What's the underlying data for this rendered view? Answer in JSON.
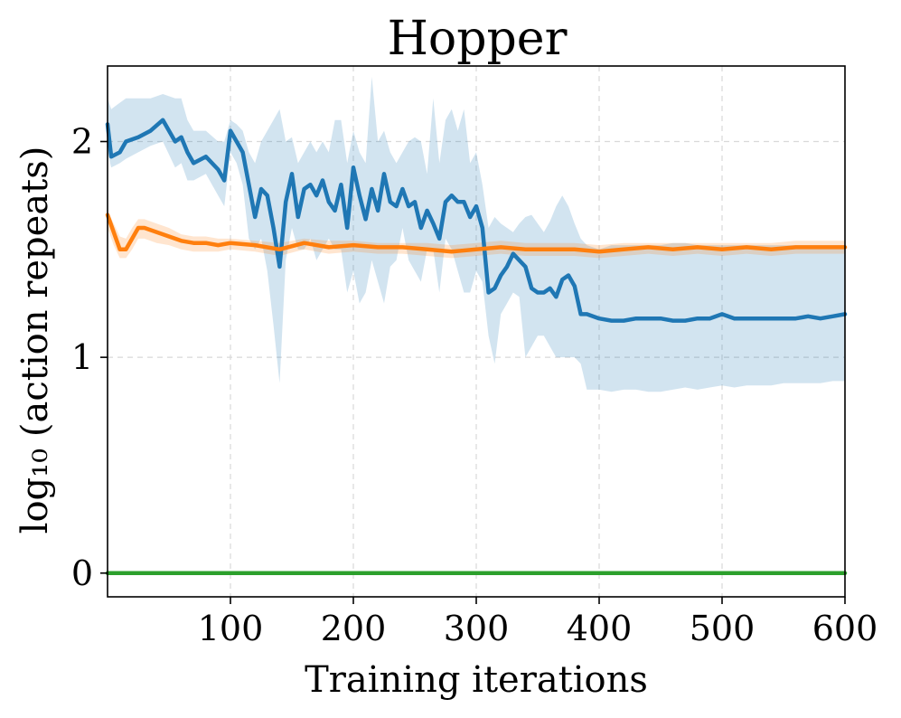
{
  "chart_data": {
    "type": "line",
    "title": "Hopper",
    "xlabel": "Training iterations",
    "ylabel": "log₁₀ (action repeats)",
    "xlim": [
      0,
      600
    ],
    "ylim": [
      -0.11,
      2.35
    ],
    "xticks": [
      100,
      200,
      300,
      400,
      500,
      600
    ],
    "xtick_labels": [
      "100",
      "200",
      "300",
      "400",
      "500",
      "600"
    ],
    "yticks": [
      0,
      1,
      2
    ],
    "ytick_labels": [
      "0",
      "1",
      "2"
    ],
    "grid": true,
    "colors": {
      "blue": "#1f77b4",
      "orange": "#ff7f0e",
      "green": "#2ca02c"
    },
    "series": [
      {
        "name": "series-blue",
        "color": "#1f77b4",
        "x": [
          0,
          3,
          10,
          15,
          25,
          35,
          45,
          55,
          60,
          65,
          70,
          80,
          90,
          95,
          100,
          105,
          110,
          115,
          120,
          125,
          130,
          135,
          140,
          145,
          150,
          155,
          160,
          165,
          170,
          175,
          180,
          185,
          190,
          195,
          200,
          205,
          210,
          215,
          220,
          225,
          230,
          235,
          240,
          245,
          250,
          255,
          260,
          265,
          270,
          275,
          280,
          285,
          290,
          295,
          300,
          305,
          310,
          315,
          320,
          325,
          330,
          335,
          340,
          345,
          350,
          355,
          360,
          365,
          370,
          375,
          380,
          385,
          390,
          400,
          410,
          420,
          430,
          440,
          450,
          460,
          470,
          480,
          490,
          500,
          510,
          520,
          530,
          540,
          550,
          560,
          570,
          580,
          590,
          600
        ],
        "values": [
          2.08,
          1.93,
          1.95,
          2.0,
          2.02,
          2.05,
          2.1,
          2.0,
          2.02,
          1.95,
          1.9,
          1.93,
          1.87,
          1.82,
          2.05,
          2.0,
          1.95,
          1.8,
          1.65,
          1.78,
          1.75,
          1.6,
          1.42,
          1.72,
          1.85,
          1.65,
          1.78,
          1.8,
          1.75,
          1.82,
          1.72,
          1.68,
          1.8,
          1.6,
          1.88,
          1.75,
          1.64,
          1.78,
          1.68,
          1.85,
          1.72,
          1.7,
          1.78,
          1.7,
          1.72,
          1.6,
          1.68,
          1.62,
          1.55,
          1.72,
          1.75,
          1.72,
          1.72,
          1.65,
          1.7,
          1.6,
          1.3,
          1.32,
          1.38,
          1.42,
          1.48,
          1.45,
          1.42,
          1.32,
          1.3,
          1.3,
          1.32,
          1.28,
          1.36,
          1.38,
          1.33,
          1.2,
          1.2,
          1.18,
          1.17,
          1.17,
          1.18,
          1.18,
          1.18,
          1.17,
          1.17,
          1.18,
          1.18,
          1.2,
          1.18,
          1.18,
          1.18,
          1.18,
          1.18,
          1.18,
          1.19,
          1.18,
          1.19,
          1.2
        ],
        "upper": [
          2.2,
          2.15,
          2.18,
          2.2,
          2.2,
          2.2,
          2.22,
          2.2,
          2.2,
          2.1,
          2.05,
          2.05,
          2.0,
          2.0,
          2.1,
          2.08,
          2.05,
          1.95,
          1.9,
          2.0,
          2.05,
          2.1,
          2.15,
          2.0,
          2.02,
          1.9,
          1.95,
          2.0,
          1.95,
          2.0,
          1.95,
          2.1,
          2.1,
          1.9,
          2.05,
          1.95,
          1.9,
          2.3,
          2.0,
          2.05,
          1.95,
          1.9,
          1.95,
          2.0,
          2.02,
          2.0,
          1.85,
          2.2,
          1.9,
          2.1,
          2.15,
          2.05,
          2.15,
          1.9,
          1.95,
          1.8,
          1.6,
          1.65,
          1.62,
          1.6,
          1.58,
          1.62,
          1.65,
          1.66,
          1.62,
          1.58,
          1.63,
          1.7,
          1.75,
          1.7,
          1.62,
          1.55,
          1.52,
          1.5,
          1.52,
          1.52,
          1.52,
          1.52,
          1.52,
          1.53,
          1.53,
          1.52,
          1.52,
          1.52,
          1.52,
          1.52,
          1.52,
          1.52,
          1.52,
          1.52,
          1.52,
          1.52,
          1.52,
          1.52
        ],
        "lower": [
          1.95,
          1.88,
          1.9,
          1.92,
          1.95,
          1.98,
          2.0,
          1.88,
          1.9,
          1.82,
          1.82,
          1.85,
          1.75,
          1.7,
          1.95,
          1.9,
          1.8,
          1.55,
          1.5,
          1.55,
          1.4,
          1.15,
          0.88,
          1.45,
          1.6,
          1.5,
          1.5,
          1.55,
          1.45,
          1.5,
          1.55,
          1.5,
          1.5,
          1.3,
          1.4,
          1.25,
          1.3,
          1.45,
          1.35,
          1.25,
          1.42,
          1.45,
          1.6,
          1.45,
          1.4,
          1.35,
          1.5,
          1.5,
          1.3,
          1.55,
          1.5,
          1.4,
          1.3,
          1.3,
          1.4,
          1.35,
          1.1,
          0.97,
          1.2,
          1.25,
          1.3,
          1.28,
          1.0,
          1.05,
          1.1,
          1.1,
          1.05,
          1.0,
          1.0,
          1.0,
          1.0,
          0.97,
          0.85,
          0.85,
          0.84,
          0.85,
          0.85,
          0.84,
          0.84,
          0.85,
          0.86,
          0.85,
          0.86,
          0.87,
          0.86,
          0.87,
          0.87,
          0.87,
          0.88,
          0.88,
          0.88,
          0.88,
          0.89,
          0.89
        ]
      },
      {
        "name": "series-orange",
        "color": "#ff7f0e",
        "x": [
          0,
          5,
          10,
          15,
          20,
          25,
          30,
          40,
          50,
          60,
          70,
          80,
          90,
          100,
          120,
          140,
          160,
          180,
          200,
          220,
          240,
          260,
          280,
          300,
          320,
          340,
          360,
          380,
          400,
          420,
          440,
          460,
          480,
          500,
          520,
          540,
          560,
          580,
          600
        ],
        "values": [
          1.66,
          1.58,
          1.5,
          1.5,
          1.55,
          1.6,
          1.6,
          1.58,
          1.56,
          1.54,
          1.53,
          1.53,
          1.52,
          1.53,
          1.52,
          1.5,
          1.53,
          1.51,
          1.52,
          1.51,
          1.51,
          1.5,
          1.49,
          1.5,
          1.51,
          1.5,
          1.5,
          1.5,
          1.49,
          1.5,
          1.51,
          1.5,
          1.51,
          1.5,
          1.51,
          1.5,
          1.51,
          1.51,
          1.51
        ],
        "upper": [
          1.68,
          1.62,
          1.56,
          1.55,
          1.6,
          1.64,
          1.64,
          1.62,
          1.6,
          1.57,
          1.56,
          1.56,
          1.55,
          1.55,
          1.54,
          1.53,
          1.55,
          1.54,
          1.54,
          1.53,
          1.53,
          1.53,
          1.52,
          1.53,
          1.54,
          1.53,
          1.53,
          1.53,
          1.52,
          1.53,
          1.53,
          1.53,
          1.53,
          1.53,
          1.53,
          1.53,
          1.54,
          1.54,
          1.54
        ],
        "lower": [
          1.6,
          1.52,
          1.46,
          1.46,
          1.5,
          1.55,
          1.55,
          1.53,
          1.52,
          1.5,
          1.49,
          1.49,
          1.49,
          1.5,
          1.49,
          1.47,
          1.5,
          1.48,
          1.49,
          1.48,
          1.48,
          1.47,
          1.46,
          1.47,
          1.48,
          1.47,
          1.47,
          1.47,
          1.46,
          1.47,
          1.48,
          1.47,
          1.48,
          1.47,
          1.48,
          1.47,
          1.48,
          1.48,
          1.48
        ]
      },
      {
        "name": "series-green",
        "color": "#2ca02c",
        "x": [
          0,
          600
        ],
        "values": [
          0,
          0
        ]
      }
    ]
  }
}
